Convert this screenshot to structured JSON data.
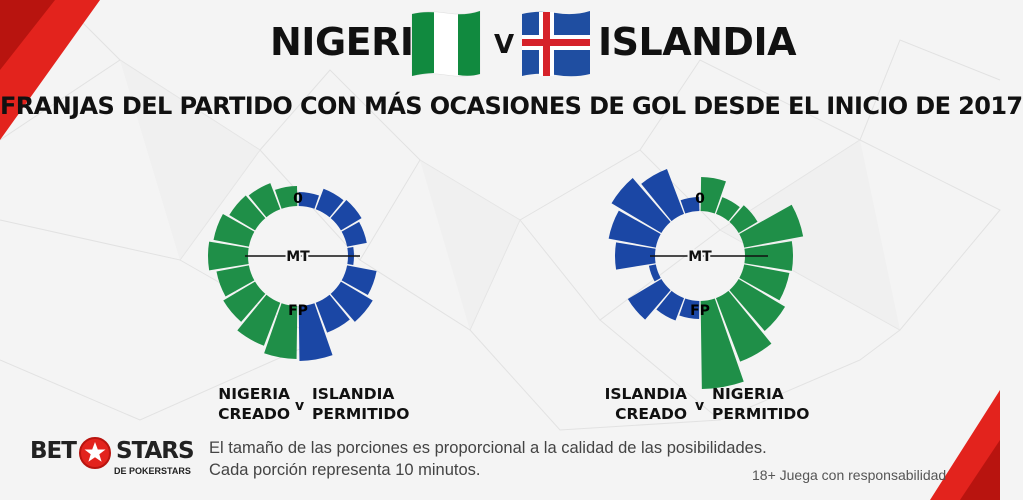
{
  "header": {
    "team_left": "NIGERIA",
    "team_right": "ISLANDIA",
    "vs": "V",
    "subtitle": "FRANJAS DEL PARTIDO CON MÁS OCASIONES DE GOL DESDE EL INICIO DE 2017"
  },
  "colors": {
    "green": "#1f8f48",
    "blue": "#1b47a5",
    "red_accent": "#e3231d",
    "flag_green": "#118a3f",
    "iceland_blue": "#1f4ea1",
    "iceland_red": "#d6222a"
  },
  "chart_data": [
    {
      "type": "radial-bar",
      "start_label": "0",
      "center_label": "MT",
      "end_label": "FP",
      "segments_per_side": 9,
      "series": [
        {
          "side": "left",
          "color": "green",
          "values": [
            20,
            28,
            30,
            36,
            40,
            33,
            37,
            46,
            53
          ]
        },
        {
          "side": "right",
          "color": "blue",
          "values": [
            14,
            22,
            24,
            20,
            6,
            30,
            37,
            32,
            55
          ]
        }
      ],
      "legend": {
        "left_line1": "NIGERIA",
        "left_line2": "CREADO",
        "v": "v",
        "right_line1": "ISLANDIA",
        "right_line2": "PERMITIDO"
      }
    },
    {
      "type": "radial-bar",
      "start_label": "0",
      "center_label": "MT",
      "end_label": "FP",
      "segments_per_side": 9,
      "series": [
        {
          "side": "left",
          "color": "blue",
          "values": [
            14,
            48,
            58,
            48,
            40,
            7,
            39,
            24,
            18
          ]
        },
        {
          "side": "right",
          "color": "green",
          "values": [
            34,
            18,
            22,
            60,
            48,
            46,
            54,
            68,
            88
          ]
        }
      ],
      "legend": {
        "left_line1": "ISLANDIA",
        "left_line2": "CREADO",
        "v": "v",
        "right_line1": "NIGERIA",
        "right_line2": "PERMITIDO"
      }
    }
  ],
  "footer": {
    "note_line1": "El tamaño de las porciones es proporcional a la calidad de las posibilidades.",
    "note_line2": "Cada porción representa 10 minutos.",
    "responsible": "18+ Juega con responsabilidad"
  },
  "logo": {
    "bet": "BET",
    "stars": "STARS",
    "sub": "DE POKERSTARS"
  }
}
